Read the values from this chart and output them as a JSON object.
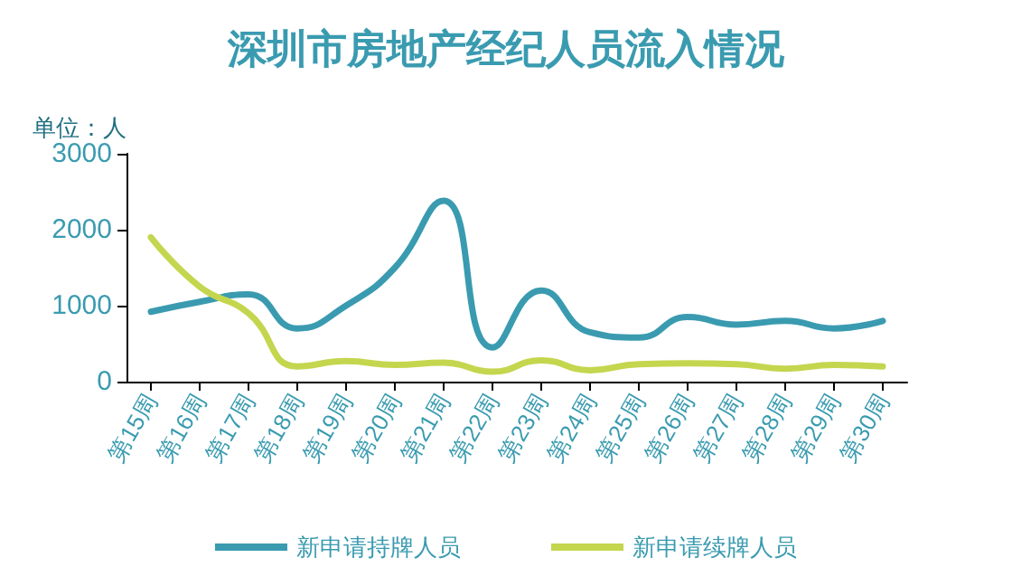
{
  "chart_data": {
    "type": "line",
    "title": "深圳市房地产经纪人员流入情况",
    "ylabel": "单位：人",
    "categories": [
      "第15周",
      "第16周",
      "第17周",
      "第18周",
      "第19周",
      "第20周",
      "第21周",
      "第22周",
      "第23周",
      "第24周",
      "第25周",
      "第26周",
      "第27周",
      "第28周",
      "第29周",
      "第30周"
    ],
    "series": [
      {
        "name": "新申请持牌人员",
        "color": "#3a9bb0",
        "values": [
          920,
          1050,
          1150,
          700,
          1000,
          1500,
          2380,
          450,
          1200,
          650,
          580,
          850,
          750,
          800,
          700,
          800
        ]
      },
      {
        "name": "新申请续牌人员",
        "color": "#c4d64e",
        "values": [
          1900,
          1250,
          900,
          200,
          270,
          220,
          250,
          130,
          280,
          150,
          230,
          240,
          230,
          170,
          220,
          200
        ]
      }
    ],
    "ylim": [
      0,
      3000
    ],
    "yticks": [
      0,
      1000,
      2000,
      3000
    ],
    "grid": false,
    "legend": "bottom",
    "marker": "none",
    "line_style": "solid"
  }
}
